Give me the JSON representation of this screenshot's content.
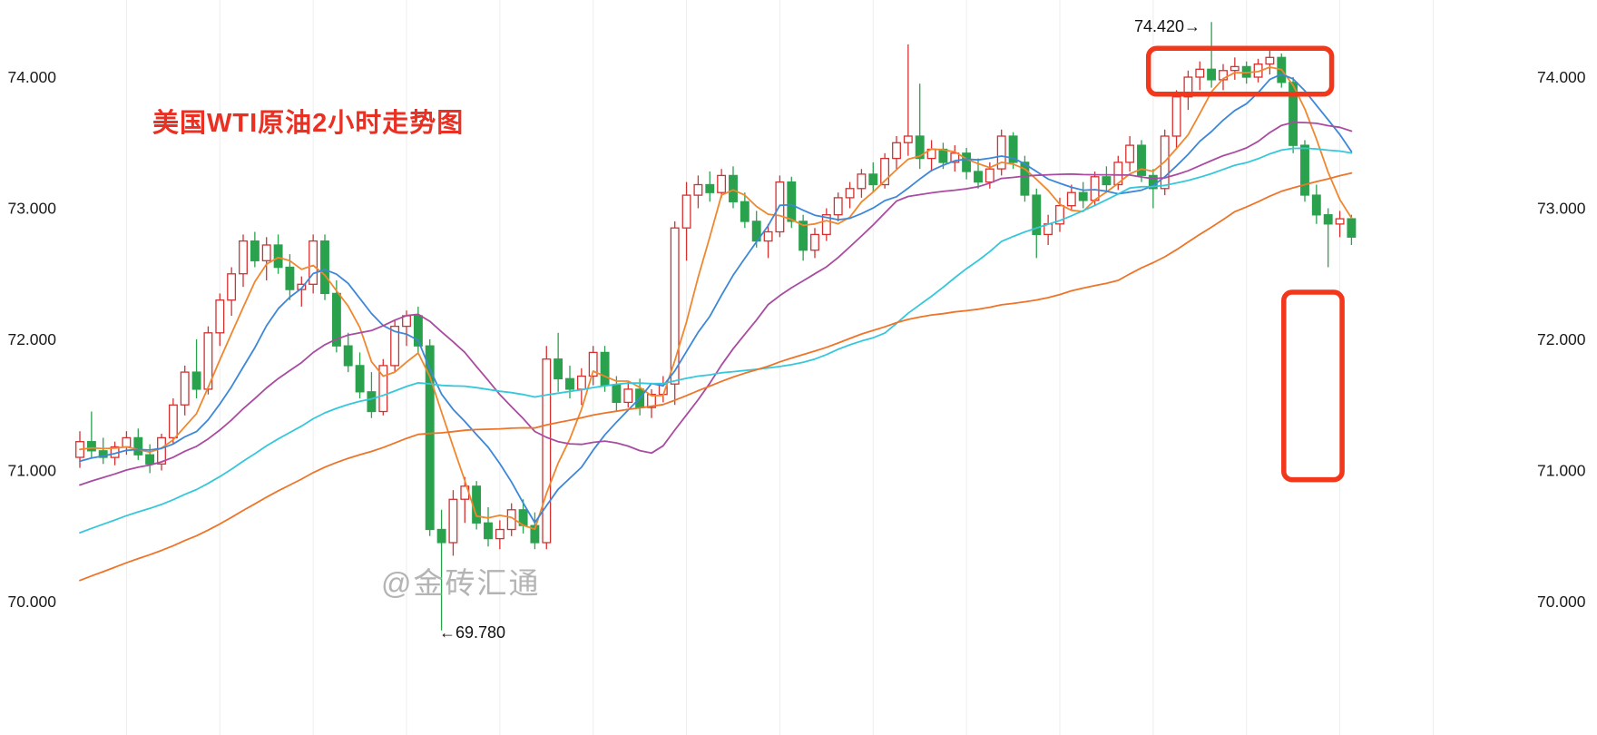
{
  "chart_data": {
    "type": "candlestick",
    "title": "美国WTI原油2小时走势图",
    "instrument": "美国WTI原油",
    "timeframe": "2小时",
    "watermark": "@金砖汇通",
    "grid": {
      "vertical": true,
      "horizontal": false
    },
    "y_axis": {
      "side": "both",
      "range": [
        69.7,
        74.5
      ],
      "ticks": [
        {
          "label": "74.000",
          "price": 74.0
        },
        {
          "label": "73.000",
          "price": 73.0
        },
        {
          "label": "72.000",
          "price": 72.0
        },
        {
          "label": "71.000",
          "price": 71.0
        },
        {
          "label": "70.000",
          "price": 70.0
        }
      ]
    },
    "colors": {
      "up": "#d43030",
      "down": "#2aa14d",
      "ma5": "#f0872f",
      "ma10": "#3d87d9",
      "ma20": "#a94ba0",
      "ma40": "#35c7dc",
      "ma60": "#ed7428",
      "box": "#f2371b",
      "title": "#ea2f23",
      "watermark": "#b4b4b4",
      "grid": "#ededed",
      "axis_text": "#1a1a1a"
    },
    "moving_averages": [
      {
        "name": "MA5",
        "period": 5,
        "color_key": "ma5"
      },
      {
        "name": "MA10",
        "period": 10,
        "color_key": "ma10"
      },
      {
        "name": "MA20",
        "period": 20,
        "color_key": "ma20"
      },
      {
        "name": "MA40",
        "period": 40,
        "color_key": "ma40"
      },
      {
        "name": "MA60",
        "period": 60,
        "color_key": "ma60"
      }
    ],
    "ma_seed": {
      "start": 69.05,
      "end": 71.2,
      "count": 60
    },
    "candles": [
      [
        71.1,
        71.3,
        71.02,
        71.22
      ],
      [
        71.22,
        71.45,
        71.1,
        71.15
      ],
      [
        71.15,
        71.25,
        71.05,
        71.1
      ],
      [
        71.1,
        71.22,
        71.04,
        71.18
      ],
      [
        71.18,
        71.3,
        71.12,
        71.25
      ],
      [
        71.25,
        71.32,
        71.08,
        71.12
      ],
      [
        71.12,
        71.2,
        70.98,
        71.05
      ],
      [
        71.05,
        71.28,
        71.0,
        71.25
      ],
      [
        71.25,
        71.55,
        71.2,
        71.5
      ],
      [
        71.5,
        71.8,
        71.42,
        71.75
      ],
      [
        71.75,
        72.0,
        71.55,
        71.62
      ],
      [
        71.62,
        72.1,
        71.58,
        72.05
      ],
      [
        72.05,
        72.35,
        71.95,
        72.3
      ],
      [
        72.3,
        72.55,
        72.18,
        72.5
      ],
      [
        72.5,
        72.8,
        72.4,
        72.75
      ],
      [
        72.75,
        72.82,
        72.55,
        72.6
      ],
      [
        72.6,
        72.78,
        72.45,
        72.72
      ],
      [
        72.72,
        72.8,
        72.5,
        72.55
      ],
      [
        72.55,
        72.65,
        72.3,
        72.38
      ],
      [
        72.38,
        72.48,
        72.25,
        72.42
      ],
      [
        72.42,
        72.8,
        72.35,
        72.75
      ],
      [
        72.75,
        72.8,
        72.3,
        72.35
      ],
      [
        72.35,
        72.45,
        71.9,
        71.95
      ],
      [
        71.95,
        72.05,
        71.75,
        71.8
      ],
      [
        71.8,
        71.9,
        71.55,
        71.6
      ],
      [
        71.6,
        71.75,
        71.4,
        71.45
      ],
      [
        71.45,
        71.85,
        71.42,
        71.8
      ],
      [
        71.8,
        72.15,
        71.75,
        72.1
      ],
      [
        72.1,
        72.22,
        71.95,
        72.18
      ],
      [
        72.18,
        72.25,
        71.9,
        71.95
      ],
      [
        71.95,
        72.0,
        70.5,
        70.55
      ],
      [
        70.55,
        70.7,
        69.78,
        70.45
      ],
      [
        70.45,
        70.85,
        70.35,
        70.78
      ],
      [
        70.78,
        70.95,
        70.6,
        70.88
      ],
      [
        70.88,
        70.92,
        70.55,
        70.6
      ],
      [
        70.6,
        70.72,
        70.42,
        70.48
      ],
      [
        70.48,
        70.62,
        70.4,
        70.55
      ],
      [
        70.55,
        70.75,
        70.5,
        70.7
      ],
      [
        70.7,
        70.78,
        70.52,
        70.58
      ],
      [
        70.58,
        70.68,
        70.4,
        70.45
      ],
      [
        70.45,
        71.95,
        70.4,
        71.85
      ],
      [
        71.85,
        72.05,
        71.6,
        71.7
      ],
      [
        71.7,
        71.8,
        71.55,
        71.62
      ],
      [
        71.62,
        71.78,
        71.5,
        71.72
      ],
      [
        71.72,
        71.95,
        71.65,
        71.9
      ],
      [
        71.9,
        71.95,
        71.6,
        71.65
      ],
      [
        71.65,
        71.72,
        71.45,
        71.52
      ],
      [
        71.52,
        71.68,
        71.48,
        71.62
      ],
      [
        71.62,
        71.7,
        71.42,
        71.48
      ],
      [
        71.48,
        71.62,
        71.4,
        71.58
      ],
      [
        71.58,
        71.72,
        71.52,
        71.66
      ],
      [
        71.66,
        72.9,
        71.5,
        72.85
      ],
      [
        72.85,
        73.2,
        72.6,
        73.1
      ],
      [
        73.1,
        73.25,
        73.0,
        73.18
      ],
      [
        73.18,
        73.28,
        73.05,
        73.12
      ],
      [
        73.12,
        73.3,
        73.08,
        73.25
      ],
      [
        73.25,
        73.32,
        73.0,
        73.05
      ],
      [
        73.05,
        73.12,
        72.85,
        72.9
      ],
      [
        72.9,
        72.98,
        72.7,
        72.75
      ],
      [
        72.75,
        72.88,
        72.62,
        72.82
      ],
      [
        72.82,
        73.25,
        72.78,
        73.2
      ],
      [
        73.2,
        73.24,
        72.85,
        72.9
      ],
      [
        72.9,
        72.95,
        72.6,
        72.68
      ],
      [
        72.68,
        72.85,
        72.62,
        72.8
      ],
      [
        72.8,
        73.0,
        72.75,
        72.95
      ],
      [
        72.95,
        73.12,
        72.9,
        73.08
      ],
      [
        73.08,
        73.2,
        73.0,
        73.15
      ],
      [
        73.15,
        73.3,
        73.08,
        73.26
      ],
      [
        73.26,
        73.35,
        73.12,
        73.18
      ],
      [
        73.18,
        73.42,
        73.15,
        73.38
      ],
      [
        73.38,
        73.55,
        73.3,
        73.5
      ],
      [
        73.5,
        74.25,
        73.4,
        73.55
      ],
      [
        73.55,
        73.95,
        73.3,
        73.38
      ],
      [
        73.38,
        73.52,
        73.28,
        73.45
      ],
      [
        73.45,
        73.5,
        73.3,
        73.35
      ],
      [
        73.35,
        73.48,
        73.28,
        73.42
      ],
      [
        73.42,
        73.46,
        73.22,
        73.28
      ],
      [
        73.28,
        73.38,
        73.15,
        73.2
      ],
      [
        73.2,
        73.35,
        73.15,
        73.3
      ],
      [
        73.3,
        73.6,
        73.25,
        73.55
      ],
      [
        73.55,
        73.58,
        73.3,
        73.35
      ],
      [
        73.35,
        73.4,
        73.05,
        73.1
      ],
      [
        73.1,
        73.15,
        72.62,
        72.8
      ],
      [
        72.8,
        72.95,
        72.72,
        72.88
      ],
      [
        72.88,
        73.08,
        72.82,
        73.02
      ],
      [
        73.02,
        73.18,
        72.98,
        73.12
      ],
      [
        73.12,
        73.2,
        73.0,
        73.06
      ],
      [
        73.06,
        73.28,
        73.02,
        73.24
      ],
      [
        73.24,
        73.32,
        73.12,
        73.18
      ],
      [
        73.18,
        73.4,
        73.14,
        73.35
      ],
      [
        73.35,
        73.55,
        73.28,
        73.48
      ],
      [
        73.48,
        73.52,
        73.2,
        73.25
      ],
      [
        73.25,
        73.3,
        73.0,
        73.15
      ],
      [
        73.15,
        73.6,
        73.1,
        73.55
      ],
      [
        73.55,
        73.9,
        73.45,
        73.85
      ],
      [
        73.85,
        74.05,
        73.75,
        74.0
      ],
      [
        74.0,
        74.12,
        73.9,
        74.06
      ],
      [
        74.06,
        74.42,
        73.92,
        73.98
      ],
      [
        73.98,
        74.1,
        73.9,
        74.05
      ],
      [
        74.05,
        74.15,
        73.98,
        74.08
      ],
      [
        74.08,
        74.12,
        73.95,
        74.0
      ],
      [
        74.0,
        74.14,
        73.96,
        74.1
      ],
      [
        74.1,
        74.2,
        74.02,
        74.15
      ],
      [
        74.15,
        74.18,
        73.92,
        73.96
      ],
      [
        73.96,
        74.0,
        73.42,
        73.48
      ],
      [
        73.48,
        73.52,
        73.05,
        73.1
      ],
      [
        73.1,
        73.18,
        72.88,
        72.95
      ],
      [
        72.95,
        73.0,
        72.55,
        72.88
      ],
      [
        72.88,
        72.98,
        72.78,
        72.92
      ],
      [
        72.92,
        72.95,
        72.72,
        72.78
      ]
    ],
    "annotations": {
      "high": {
        "label": "74.420→",
        "price": 74.42,
        "candle_index": 97
      },
      "low": {
        "label": "←69.780",
        "price": 69.78,
        "candle_index": 31
      },
      "boxes": [
        {
          "name": "top-consolidation-highlight-box",
          "i0": 91.6,
          "i1": 107.3,
          "p0": 74.22,
          "p1": 73.87
        },
        {
          "name": "target-zone-highlight-box",
          "i0": 103.2,
          "i1": 108.2,
          "p0": 72.36,
          "p1": 70.93
        }
      ]
    }
  }
}
